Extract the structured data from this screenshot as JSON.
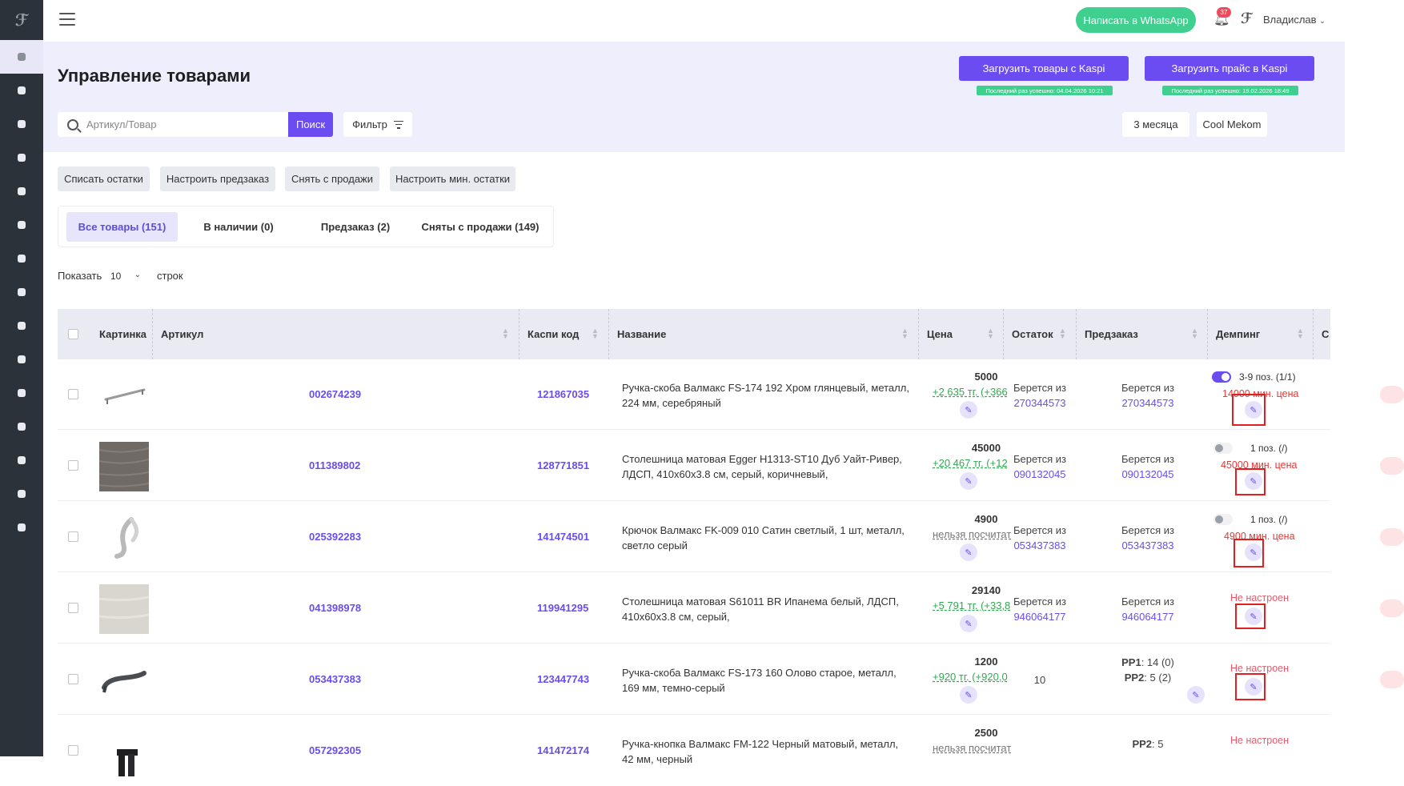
{
  "topbar": {
    "whatsapp_label": "Написать в WhatsApp",
    "notification_count": "37",
    "user_name": "Владислав"
  },
  "header": {
    "title": "Управление товарами",
    "kaspi_upload_goods": "Загрузить товары с Kaspi",
    "kaspi_upload_goods_note": "Последний раз успешно: 04.04.2026 10:21",
    "kaspi_upload_price": "Загрузить прайс в Kaspi",
    "kaspi_upload_price_note": "Последний раз успешно: 19.02.2026 18:49",
    "search_placeholder": "Артикул/Товар",
    "search_button": "Поиск",
    "filter_button": "Фильтр",
    "period": "3 месяца",
    "store": "Cool Mekom"
  },
  "actions": [
    "Списать остатки",
    "Настроить предзаказ",
    "Снять с продажи",
    "Настроить мин. остатки"
  ],
  "tabs": [
    "Все товары (151)",
    "В наличии (0)",
    "Предзаказ (2)",
    "Сняты с продажи (149)"
  ],
  "pagination": {
    "show_label": "Показать",
    "page_size": "10",
    "rows_label": "строк"
  },
  "table": {
    "headers": {
      "picture": "Картинка",
      "article": "Артикул",
      "kaspi_code": "Каспи код",
      "name": "Название",
      "price": "Цена",
      "stock": "Остаток",
      "preorder": "Предзаказ",
      "dumping": "Демпинг",
      "cut": "С"
    },
    "rows": [
      {
        "article": "002674239",
        "kaspi_code": "121867035",
        "name": "Ручка-скоба Валмакс FS-174 192 Хром глянцевый, металл, 224 мм, серебряный",
        "price": "5000",
        "price_sub": "+2 635 тг. (+366",
        "stock_prefix": "Берется из",
        "stock_value": "270344573",
        "preorder_prefix": "Берется из",
        "preorder_value": "270344573",
        "dump_text": "3-9 поз. (1/1)",
        "dump_min": "14000 мин. цена"
      },
      {
        "article": "011389802",
        "kaspi_code": "128771851",
        "name": "Столешница матовая Egger H1313-ST10 Дуб Уайт-Ривер, ЛДСП, 410х60х3.8 см, серый, коричневый,",
        "price": "45000",
        "price_sub": "+20 467 тг. (+12",
        "stock_prefix": "Берется из",
        "stock_value": "090132045",
        "preorder_prefix": "Берется из",
        "preorder_value": "090132045",
        "dump_text": "1 поз. (/)",
        "dump_min": "45000 мин. цена"
      },
      {
        "article": "025392283",
        "kaspi_code": "141474501",
        "name": "Крючок Валмакс FK-009 010 Сатин светлый, 1 шт, металл, светло серый",
        "price": "4900",
        "price_sub": "нельзя посчитат",
        "stock_prefix": "Берется из",
        "stock_value": "053437383",
        "preorder_prefix": "Берется из",
        "preorder_value": "053437383",
        "dump_text": "1 поз. (/)",
        "dump_min": "4900 мин. цена"
      },
      {
        "article": "041398978",
        "kaspi_code": "119941295",
        "name": "Столешница матовая S61011 BR Ипанема белый, ЛДСП, 410х60х3.8 см, серый,",
        "price": "29140",
        "price_sub": "+5 791 тг. (+33,8",
        "stock_prefix": "Берется из",
        "stock_value": "946064177",
        "preorder_prefix": "Берется из",
        "preorder_value": "946064177",
        "dump_notset": "Не настроен"
      },
      {
        "article": "053437383",
        "kaspi_code": "123447743",
        "name": "Ручка-скоба Валмакс FS-173 160 Олово старое, металл, 169 мм, темно-серый",
        "price": "1200",
        "price_sub": "+920 тг. (+920,0",
        "stock_value": "10",
        "pp1_label": "PP1",
        "pp1_value": ": 14 (0)",
        "pp2_label": "PP2",
        "pp2_value": ": 5 (2)",
        "dump_notset": "Не настроен"
      },
      {
        "article": "057292305",
        "kaspi_code": "141472174",
        "name": "Ручка-кнопка Валмакс FM-122 Черный матовый, металл, 42 мм, черный",
        "price": "2500",
        "price_sub": "нельзя посчитат",
        "pp2_label": "PP2",
        "pp2_value": ": 5",
        "dump_notset": "Не настроен"
      }
    ]
  },
  "colors": {
    "accent": "#6a4cf0",
    "green": "#3fcf8e",
    "red": "#e53935",
    "sidebar": "#2c323a"
  }
}
